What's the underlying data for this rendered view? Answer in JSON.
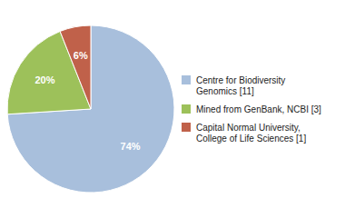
{
  "chart_data": {
    "type": "pie",
    "categories": [
      "Centre for Biodiversity\nGenomics [11]",
      "Mined from GenBank, NCBI [3]",
      "Capital Normal University,\nCollege of Life Sciences [1]"
    ],
    "values": [
      74,
      20,
      6
    ],
    "value_labels": [
      "74%",
      "20%",
      "6%"
    ],
    "colors": [
      "#a8bfdc",
      "#9dc15a",
      "#c0614a"
    ],
    "data_labels": true,
    "legend": "right"
  }
}
